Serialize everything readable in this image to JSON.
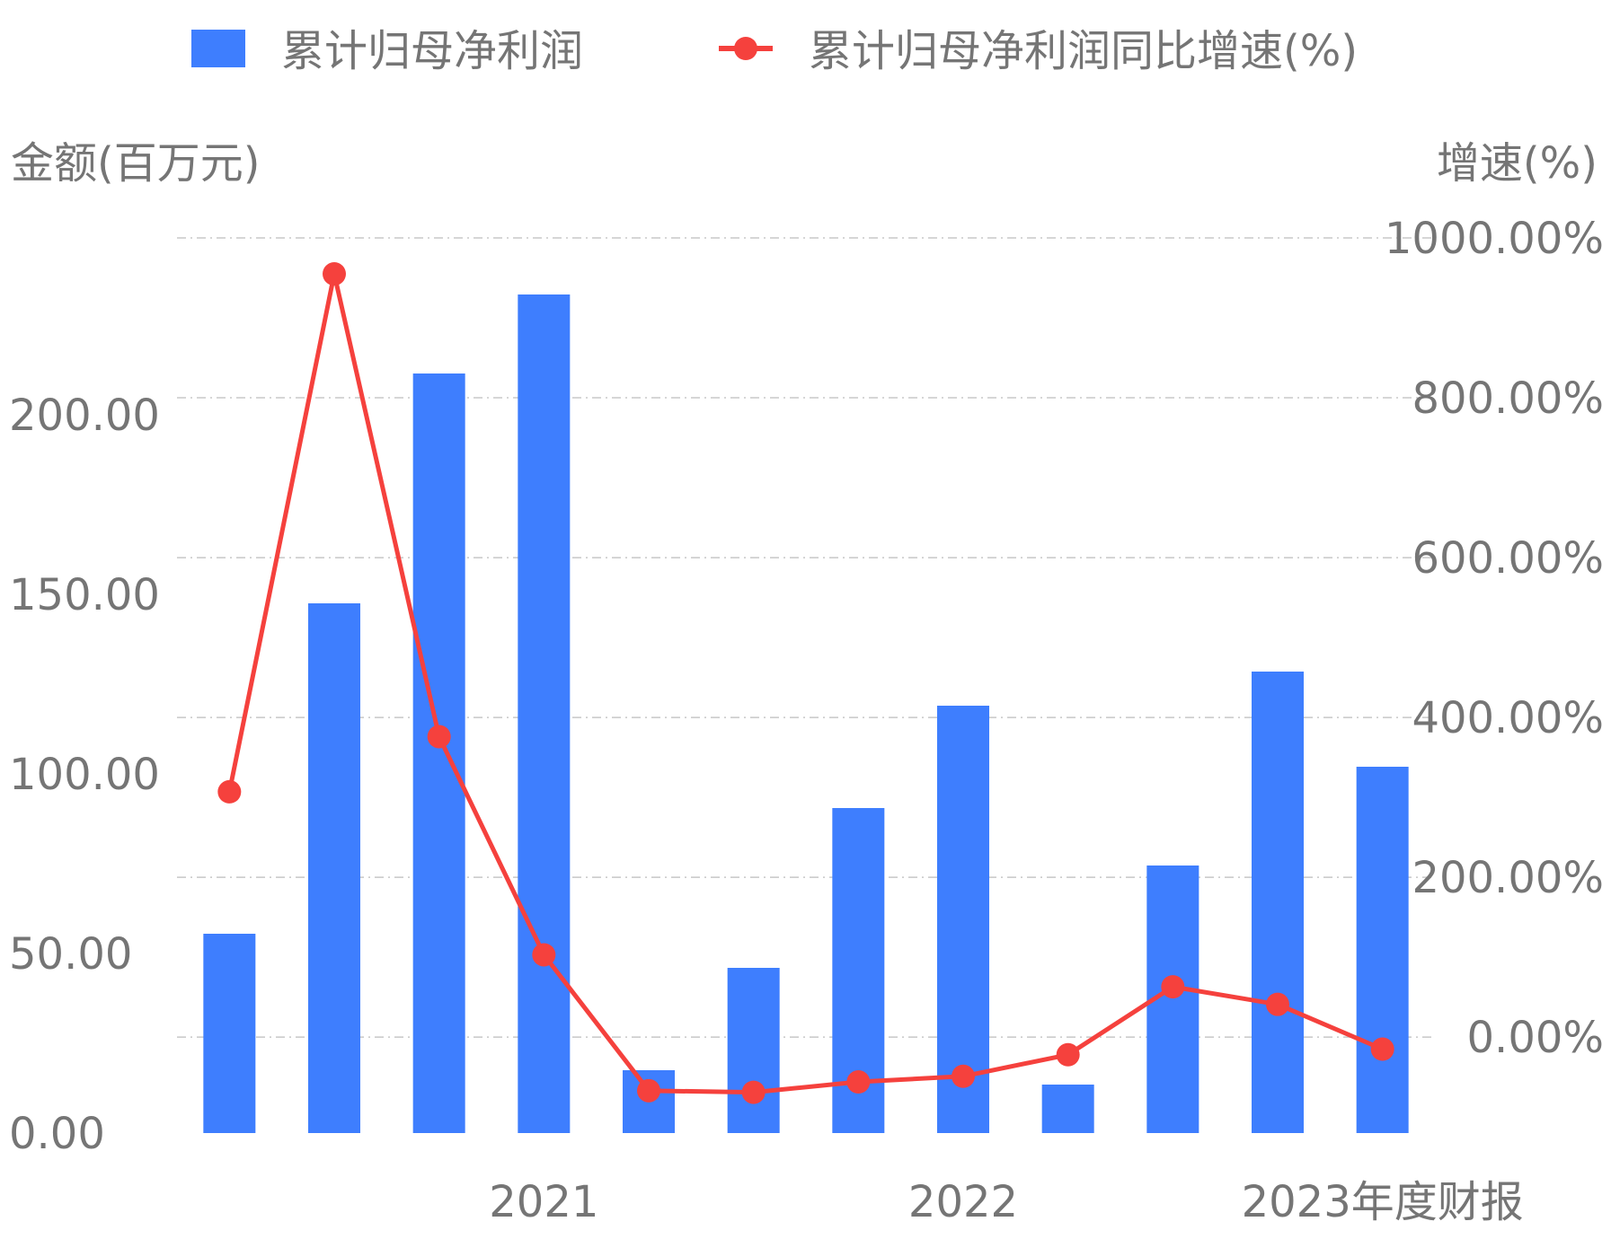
{
  "legend": {
    "bar_label": "累计归母净利润",
    "line_label": "累计归母净利润同比增速(%)"
  },
  "axis": {
    "left_title": "金额(百万元)",
    "right_title": "增速(%)"
  },
  "colors": {
    "bar": "#3e7efe",
    "line": "#f5413d",
    "grid": "#c8c8c8",
    "text": "#757575"
  },
  "chart_data": {
    "type": "bar",
    "legend_position": "top",
    "grid": true,
    "categories": [
      "",
      "",
      "",
      "2021",
      "",
      "",
      "",
      "2022",
      "",
      "",
      "",
      "2023年度财报"
    ],
    "series": [
      {
        "name": "累计归母净利润",
        "type": "bar",
        "axis": "left",
        "values": [
          55.5,
          147.5,
          211.5,
          233.5,
          17.5,
          46.0,
          90.5,
          119.0,
          13.5,
          74.5,
          128.5,
          102.0
        ]
      },
      {
        "name": "累计归母净利润同比增速(%)",
        "type": "line",
        "axis": "right",
        "values": [
          307,
          955,
          376,
          103,
          -67,
          -69,
          -56,
          -49,
          -22,
          63,
          41,
          -15
        ]
      }
    ],
    "y_left": {
      "ylim": [
        0,
        250
      ],
      "ticks": [
        0,
        50,
        100,
        150,
        200
      ],
      "tick_labels": [
        "0.00",
        "50.00",
        "100.00",
        "150.00",
        "200.00"
      ]
    },
    "y_right": {
      "ylim": [
        -120,
        1000
      ],
      "ticks": [
        0,
        200,
        400,
        600,
        800,
        1000
      ],
      "tick_labels": [
        "0.00%",
        "200.00%",
        "400.00%",
        "600.00%",
        "800.00%",
        "1000.00%"
      ]
    }
  }
}
